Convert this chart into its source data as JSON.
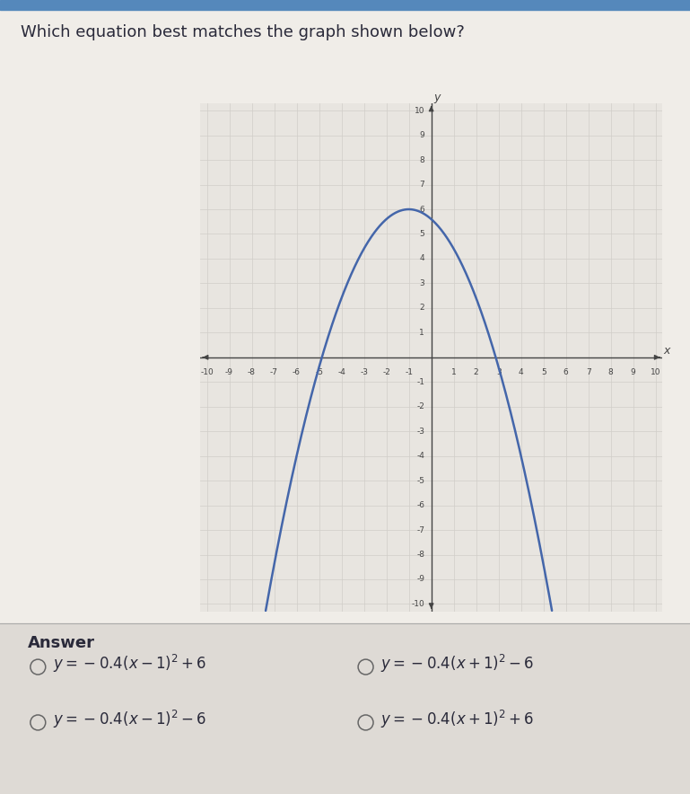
{
  "title": "Which equation best matches the graph shown below?",
  "title_fontsize": 13,
  "title_color": "#2a2a3a",
  "curve_color": "#4466aa",
  "curve_linewidth": 1.8,
  "x_min": -10,
  "x_max": 10,
  "y_min": -10,
  "y_max": 10,
  "axis_color": "#444444",
  "grid_color": "#d0cdc8",
  "grid_linewidth": 0.5,
  "page_bg": "#f0ede8",
  "graph_bg": "#e8e5e0",
  "answer_bg": "#e8e5e0",
  "answer_label": "Answer",
  "answer_fontsize": 12,
  "answer_label_fontsize": 13,
  "top_bar_color": "#5588bb",
  "fig_width": 7.69,
  "fig_height": 8.84,
  "fig_dpi": 100
}
